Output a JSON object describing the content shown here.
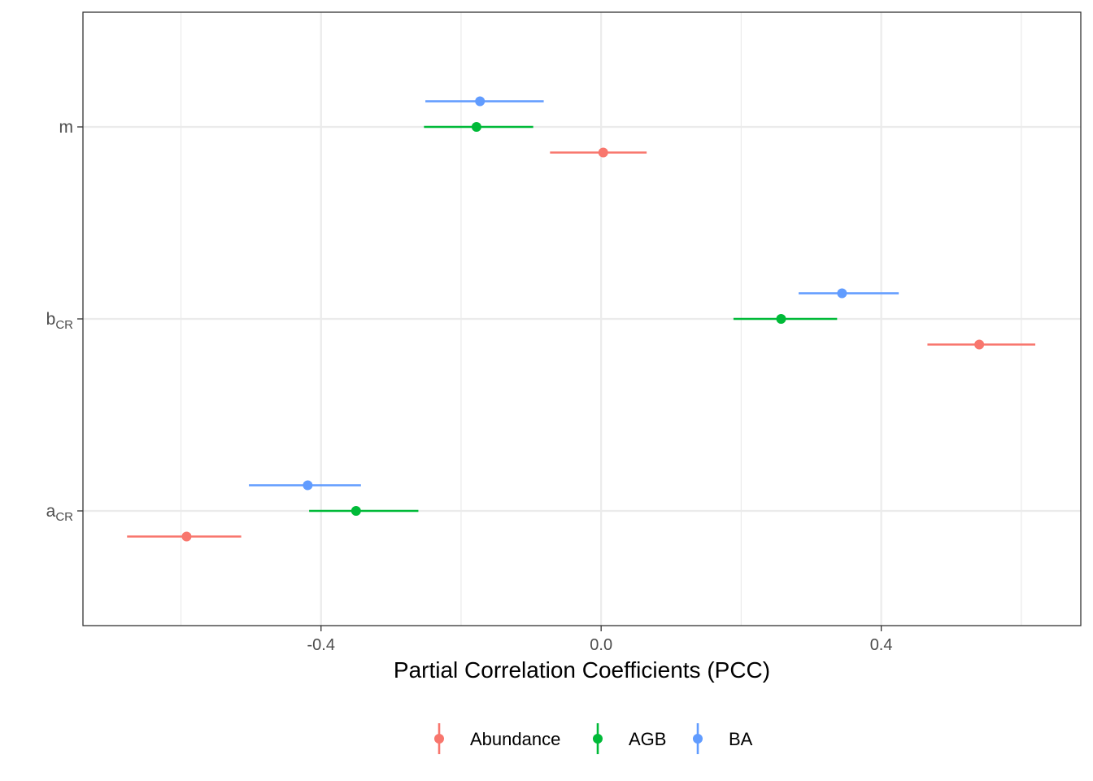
{
  "chart_data": {
    "type": "forest",
    "xlabel": "Partial Correlation Coefficients (PCC)",
    "ylabel": "",
    "xlim": [
      -0.74,
      0.685
    ],
    "x_ticks": [
      -0.4,
      0.0,
      0.4
    ],
    "x_tick_labels": [
      "-0.4",
      "0.0",
      "0.4"
    ],
    "grid": true,
    "legend_position": "bottom",
    "categories": [
      {
        "id": "m",
        "main": "m",
        "sub": ""
      },
      {
        "id": "bCR",
        "main": "b",
        "sub": "CR"
      },
      {
        "id": "aCR",
        "main": "a",
        "sub": "CR"
      }
    ],
    "series": [
      {
        "name": "Abundance",
        "color": "#F8766D",
        "points": [
          {
            "category": "m",
            "x": 0.003,
            "low": -0.073,
            "high": 0.065
          },
          {
            "category": "bCR",
            "x": 0.54,
            "low": 0.466,
            "high": 0.62
          },
          {
            "category": "aCR",
            "x": -0.592,
            "low": -0.677,
            "high": -0.514
          }
        ]
      },
      {
        "name": "AGB",
        "color": "#00BA38",
        "points": [
          {
            "category": "m",
            "x": -0.178,
            "low": -0.253,
            "high": -0.097
          },
          {
            "category": "bCR",
            "x": 0.257,
            "low": 0.189,
            "high": 0.337
          },
          {
            "category": "aCR",
            "x": -0.35,
            "low": -0.417,
            "high": -0.261
          }
        ]
      },
      {
        "name": "BA",
        "color": "#619CFF",
        "points": [
          {
            "category": "m",
            "x": -0.173,
            "low": -0.251,
            "high": -0.082
          },
          {
            "category": "bCR",
            "x": 0.344,
            "low": 0.282,
            "high": 0.425
          },
          {
            "category": "aCR",
            "x": -0.419,
            "low": -0.503,
            "high": -0.343
          }
        ]
      }
    ]
  }
}
